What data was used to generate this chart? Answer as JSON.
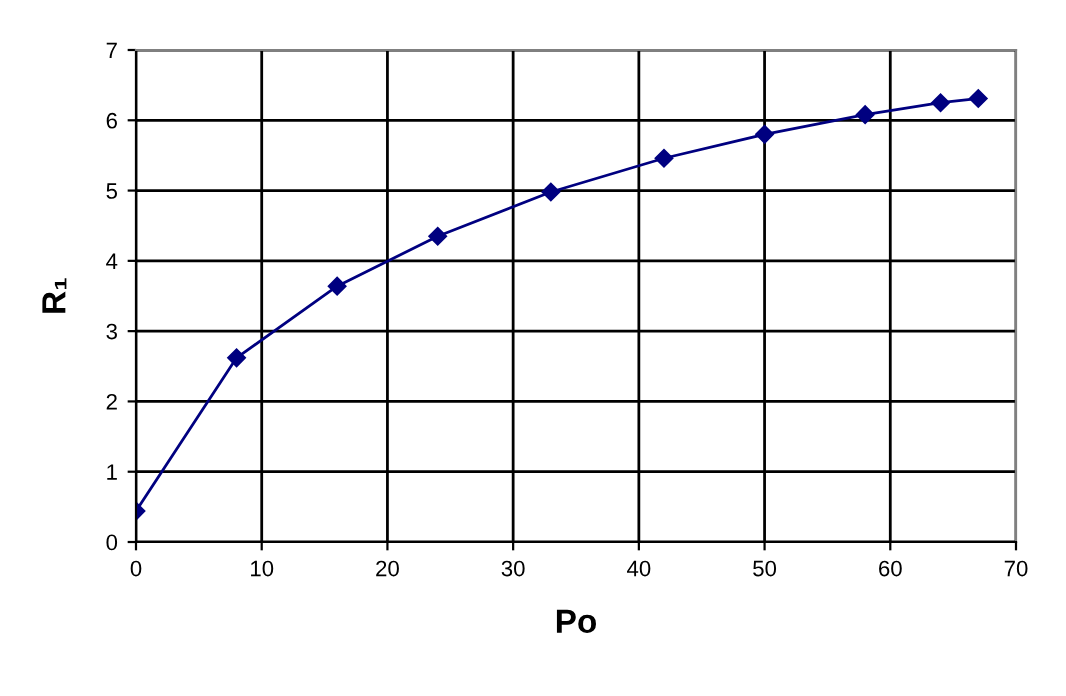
{
  "chart_data": {
    "type": "line",
    "xlabel": "Po",
    "ylabel": "R₁",
    "x": [
      0,
      8,
      16,
      24,
      33,
      42,
      50,
      58,
      64,
      67
    ],
    "series": [
      {
        "color": "#000080",
        "values": [
          0.44,
          2.62,
          3.64,
          4.35,
          4.98,
          5.46,
          5.8,
          6.08,
          6.25,
          6.31
        ]
      }
    ],
    "xlim": [
      0,
      70
    ],
    "ylim": [
      0,
      7
    ],
    "xticks": [
      0,
      10,
      20,
      30,
      40,
      50,
      60,
      70
    ],
    "yticks": [
      0,
      1,
      2,
      3,
      4,
      5,
      6,
      7
    ],
    "grid": true,
    "marker": "diamond",
    "line_style": "solid",
    "legend": false
  }
}
